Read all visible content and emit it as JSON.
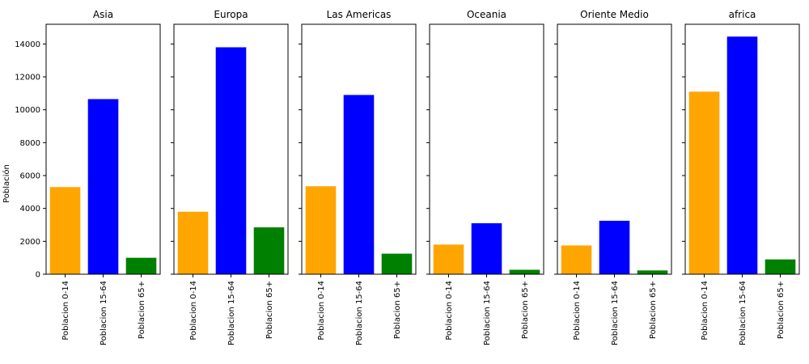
{
  "chart_data": {
    "type": "bar",
    "layout": "small-multiples",
    "ylabel": "Población",
    "ylim": [
      0,
      15200
    ],
    "yticks": [
      0,
      2000,
      4000,
      6000,
      8000,
      10000,
      12000,
      14000
    ],
    "yticks_text": [
      "0",
      "2000",
      "4000",
      "6000",
      "8000",
      "10000",
      "12000",
      "14000"
    ],
    "shared_y": true,
    "grid": false,
    "categories": [
      "Poblacion 0-14",
      "Poblacion 15-64",
      "Poblacion 65+"
    ],
    "colors": [
      "#ffa500",
      "#0000ff",
      "#008000"
    ],
    "panels": [
      {
        "title": "Asia",
        "values": [
          5300,
          10650,
          1000
        ]
      },
      {
        "title": "Europa",
        "values": [
          3800,
          13800,
          2850
        ]
      },
      {
        "title": "Las Americas",
        "values": [
          5350,
          10900,
          1250
        ]
      },
      {
        "title": "Oceania",
        "values": [
          1800,
          3100,
          270
        ]
      },
      {
        "title": "Oriente Medio",
        "values": [
          1750,
          3250,
          230
        ]
      },
      {
        "title": "africa",
        "values": [
          11100,
          14450,
          900
        ]
      }
    ]
  }
}
